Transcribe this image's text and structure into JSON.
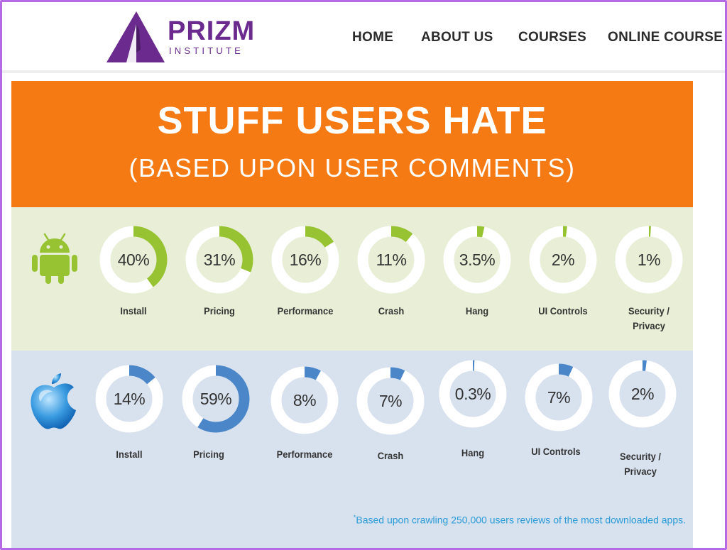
{
  "header": {
    "logo": {
      "name": "PRIZM",
      "sub": "INSTITUTE",
      "color": "#6a2a8e"
    },
    "nav": [
      {
        "label": "HOME"
      },
      {
        "label": "ABOUT US"
      },
      {
        "label": "COURSES"
      },
      {
        "label": "ONLINE COURSE"
      }
    ]
  },
  "infographic": {
    "title": "STUFF USERS HATE",
    "subtitle": "(BASED UPON USER COMMENTS)",
    "banner_color": "#f57a14",
    "footnote_mark": "*",
    "footnote": "Based upon crawling 250,000 users reviews of the most downloaded apps.",
    "android": {
      "icon": "android-icon",
      "accent": "#97c232",
      "items": [
        {
          "label": "Install",
          "value": 40,
          "display": "40%"
        },
        {
          "label": "Pricing",
          "value": 31,
          "display": "31%"
        },
        {
          "label": "Performance",
          "value": 16,
          "display": "16%"
        },
        {
          "label": "Crash",
          "value": 11,
          "display": "11%"
        },
        {
          "label": "Hang",
          "value": 3.5,
          "display": "3.5%"
        },
        {
          "label": "UI Controls",
          "value": 2,
          "display": "2%"
        },
        {
          "label": "Security / Privacy",
          "value": 1,
          "display": "1%"
        }
      ]
    },
    "apple": {
      "icon": "apple-icon",
      "accent": "#4a86c8",
      "items": [
        {
          "label": "Install",
          "value": 14,
          "display": "14%"
        },
        {
          "label": "Pricing",
          "value": 59,
          "display": "59%"
        },
        {
          "label": "Performance",
          "value": 8,
          "display": "8%"
        },
        {
          "label": "Crash",
          "value": 7,
          "display": "7%"
        },
        {
          "label": "Hang",
          "value": 0.3,
          "display": "0.3%"
        },
        {
          "label": "UI Controls",
          "value": 7,
          "display": "7%"
        },
        {
          "label": "Security / Privacy",
          "value": 2,
          "display": "2%"
        }
      ]
    }
  }
}
